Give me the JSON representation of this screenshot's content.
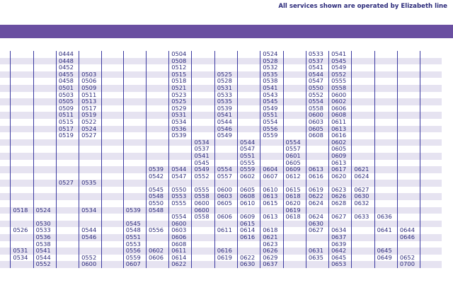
{
  "header": {
    "note": "All services shown are operated by Elizabeth line"
  },
  "timetable": {
    "rows": [
      [
        "",
        "",
        "0444",
        "",
        "",
        "",
        "",
        "0504",
        "",
        "",
        "",
        "0524",
        "",
        "0533",
        "0541"
      ],
      [
        "",
        "",
        "0448",
        "",
        "",
        "",
        "",
        "0508",
        "",
        "",
        "",
        "0528",
        "",
        "0537",
        "0545"
      ],
      [
        "",
        "",
        "0452",
        "",
        "",
        "",
        "",
        "0512",
        "",
        "",
        "",
        "0532",
        "",
        "0541",
        "0549"
      ],
      [
        "",
        "",
        "0455",
        "0503",
        "",
        "",
        "",
        "0515",
        "",
        "0525",
        "",
        "0535",
        "",
        "0544",
        "0552"
      ],
      [
        "",
        "",
        "0458",
        "0506",
        "",
        "",
        "",
        "0518",
        "",
        "0528",
        "",
        "0538",
        "",
        "0547",
        "0555"
      ],
      [
        "",
        "",
        "0501",
        "0509",
        "",
        "",
        "",
        "0521",
        "",
        "0531",
        "",
        "0541",
        "",
        "0550",
        "0558"
      ],
      [
        "",
        "",
        "0503",
        "0511",
        "",
        "",
        "",
        "0523",
        "",
        "0533",
        "",
        "0543",
        "",
        "0552",
        "0600"
      ],
      [
        "",
        "",
        "0505",
        "0513",
        "",
        "",
        "",
        "0525",
        "",
        "0535",
        "",
        "0545",
        "",
        "0554",
        "0602"
      ],
      [
        "",
        "",
        "0509",
        "0517",
        "",
        "",
        "",
        "0529",
        "",
        "0539",
        "",
        "0549",
        "",
        "0558",
        "0606"
      ],
      [
        "",
        "",
        "0511",
        "0519",
        "",
        "",
        "",
        "0531",
        "",
        "0541",
        "",
        "0551",
        "",
        "0600",
        "0608"
      ],
      [
        "",
        "",
        "0515",
        "0522",
        "",
        "",
        "",
        "0534",
        "",
        "0544",
        "",
        "0554",
        "",
        "0603",
        "0611"
      ],
      [
        "",
        "",
        "0517",
        "0524",
        "",
        "",
        "",
        "0536",
        "",
        "0546",
        "",
        "0556",
        "",
        "0605",
        "0613"
      ],
      [
        "",
        "",
        "0519",
        "0527",
        "",
        "",
        "",
        "0539",
        "",
        "0549",
        "",
        "0559",
        "",
        "0608",
        "0616"
      ],
      [
        "",
        "",
        "",
        "",
        "",
        "",
        "",
        "",
        "0534",
        "",
        "0544",
        "",
        "0554",
        "",
        "0602"
      ],
      [
        "",
        "",
        "",
        "",
        "",
        "",
        "",
        "",
        "0537",
        "",
        "0547",
        "",
        "0557",
        "",
        "0605"
      ],
      [
        "",
        "",
        "",
        "",
        "",
        "",
        "",
        "",
        "0541",
        "",
        "0551",
        "",
        "0601",
        "",
        "0609"
      ],
      [
        "",
        "",
        "",
        "",
        "",
        "",
        "",
        "",
        "0545",
        "",
        "0555",
        "",
        "0605",
        "",
        "0613"
      ],
      [
        "",
        "",
        "",
        "",
        "",
        "",
        "0539",
        "0544",
        "0549",
        "0554",
        "0559",
        "0604",
        "0609",
        "0613",
        "0617",
        "0621"
      ],
      [
        "",
        "",
        "",
        "",
        "",
        "",
        "0542",
        "0547",
        "0552",
        "0557",
        "0602",
        "0607",
        "0612",
        "0616",
        "0620",
        "0624"
      ],
      [
        "",
        "",
        "0527",
        "0535",
        "",
        "",
        "",
        "",
        "",
        "",
        "",
        "",
        "",
        "",
        "",
        ""
      ],
      [
        "",
        "",
        "",
        "",
        "",
        "",
        "0545",
        "0550",
        "0555",
        "0600",
        "0605",
        "0610",
        "0615",
        "0619",
        "0623",
        "0627"
      ],
      [
        "",
        "",
        "",
        "",
        "",
        "",
        "0548",
        "0553",
        "0558",
        "0603",
        "0608",
        "0613",
        "0618",
        "0622",
        "0626",
        "0630"
      ],
      [
        "",
        "",
        "",
        "",
        "",
        "",
        "0550",
        "0555",
        "0600",
        "0605",
        "0610",
        "0615",
        "0620",
        "0624",
        "0628",
        "0632"
      ],
      [
        "0518",
        "0524",
        "",
        "0534",
        "",
        "0539",
        "0548",
        "",
        "0600",
        "",
        "",
        "",
        "0619",
        "",
        "",
        ""
      ],
      [
        "",
        "",
        "",
        "",
        "",
        "",
        "",
        "0554",
        "0558",
        "0606",
        "0609",
        "0613",
        "0618",
        "0624",
        "0627",
        "0633",
        "0636"
      ],
      [
        "",
        "0530",
        "",
        "",
        "",
        "0545",
        "",
        "0600",
        "",
        "",
        "0615",
        "",
        "",
        "0630",
        "",
        ""
      ],
      [
        "0526",
        "0533",
        "",
        "0544",
        "",
        "0548",
        "0556",
        "0603",
        "",
        "0611",
        "0614",
        "0618",
        "",
        "0627",
        "0634",
        "",
        "0641",
        "0644"
      ],
      [
        "",
        "0536",
        "",
        "0546",
        "",
        "0551",
        "",
        "0606",
        "",
        "",
        "0616",
        "0621",
        "",
        "",
        "0637",
        "",
        "",
        "0646"
      ],
      [
        "",
        "0538",
        "",
        "",
        "",
        "0553",
        "",
        "0608",
        "",
        "",
        "",
        "0623",
        "",
        "",
        "0639",
        "",
        ""
      ],
      [
        "0531",
        "0541",
        "",
        "",
        "",
        "0556",
        "0602",
        "0611",
        "",
        "0616",
        "",
        "0626",
        "",
        "0631",
        "0642",
        "",
        "0645"
      ],
      [
        "0534",
        "0544",
        "",
        "0552",
        "",
        "0559",
        "0606",
        "0614",
        "",
        "0619",
        "0622",
        "0629",
        "",
        "0635",
        "0645",
        "",
        "0649",
        "0652"
      ],
      [
        "",
        "0552",
        "",
        "0600",
        "",
        "0607",
        "",
        "0622",
        "",
        "",
        "0630",
        "0637",
        "",
        "",
        "0653",
        "",
        "",
        "0700"
      ]
    ]
  }
}
